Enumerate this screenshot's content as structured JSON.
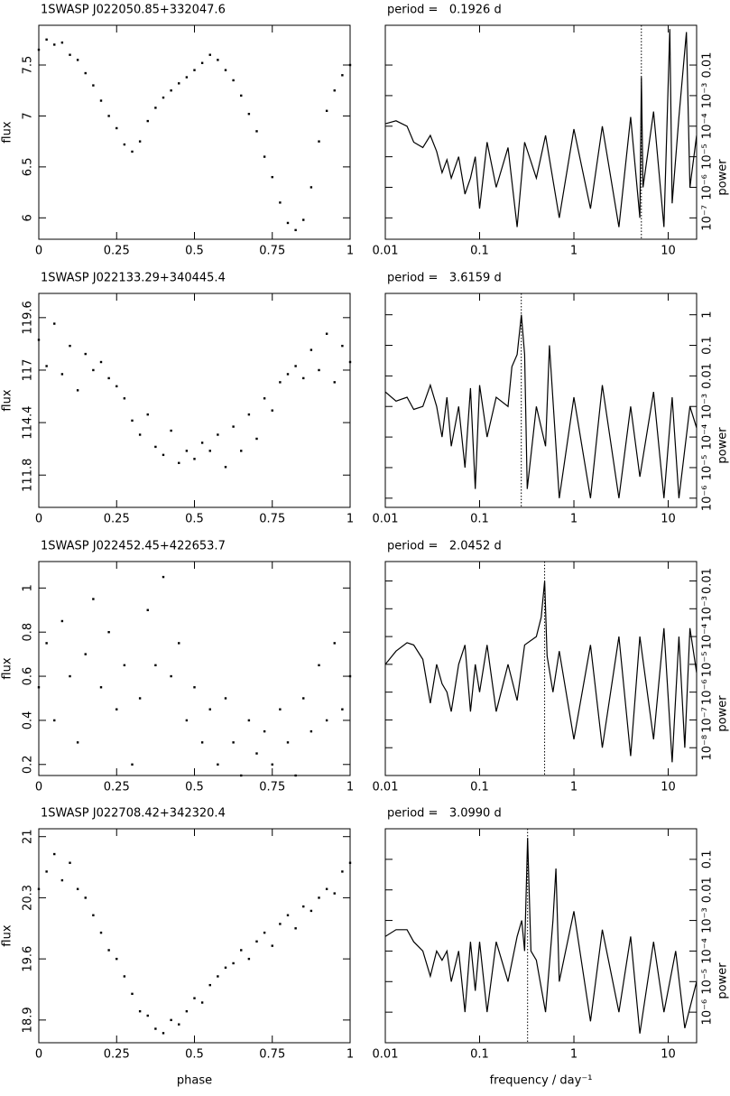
{
  "chart_data": [
    {
      "type": "scatter",
      "title": "1SWASP J022050.85+332047.6",
      "ylabel": "flux",
      "x": [
        0,
        0.025,
        0.05,
        0.075,
        0.1,
        0.125,
        0.15,
        0.175,
        0.2,
        0.225,
        0.25,
        0.275,
        0.3,
        0.325,
        0.35,
        0.375,
        0.4,
        0.425,
        0.45,
        0.475,
        0.5,
        0.525,
        0.55,
        0.575,
        0.6,
        0.625,
        0.65,
        0.675,
        0.7,
        0.725,
        0.75,
        0.775,
        0.8,
        0.825,
        0.85,
        0.875,
        0.9,
        0.925,
        0.95,
        0.975,
        1
      ],
      "values": [
        7.65,
        7.75,
        7.7,
        7.72,
        7.6,
        7.55,
        7.42,
        7.3,
        7.15,
        7.0,
        6.88,
        6.72,
        6.65,
        6.75,
        6.95,
        7.08,
        7.18,
        7.25,
        7.32,
        7.38,
        7.45,
        7.52,
        7.6,
        7.55,
        7.45,
        7.35,
        7.2,
        7.02,
        6.85,
        6.6,
        6.4,
        6.15,
        5.95,
        5.88,
        5.98,
        6.3,
        6.75,
        7.05,
        7.25,
        7.4,
        7.5
      ],
      "color": "#000000",
      "xlim": [
        0,
        1
      ],
      "xticks": [
        0,
        0.25,
        0.5,
        0.75,
        1
      ],
      "ylim": [
        5.79,
        7.89
      ],
      "yticks": [
        6,
        6.5,
        7,
        7.5
      ]
    },
    {
      "type": "line",
      "title": "period =   0.1926 d",
      "ylabel": "power",
      "xscale": "log",
      "yscale": "log",
      "vline": 5.19,
      "x": [
        0.01,
        0.013,
        0.017,
        0.02,
        0.025,
        0.03,
        0.035,
        0.04,
        0.045,
        0.05,
        0.06,
        0.07,
        0.08,
        0.09,
        0.1,
        0.12,
        0.15,
        0.2,
        0.25,
        0.3,
        0.4,
        0.5,
        0.7,
        1,
        1.5,
        2,
        3,
        4,
        5,
        5.19,
        5.4,
        7,
        9,
        10.4,
        11,
        13,
        15.6,
        17,
        20
      ],
      "values": [
        0.00012,
        0.00015,
        0.0001,
        3e-05,
        2e-05,
        5e-05,
        1.5e-05,
        3e-06,
        8e-06,
        2e-06,
        1e-05,
        6e-07,
        2e-06,
        1e-05,
        2e-07,
        3e-05,
        1e-06,
        2e-05,
        5e-08,
        3e-05,
        2e-06,
        5e-05,
        1e-07,
        8e-05,
        2e-07,
        0.0001,
        5e-08,
        0.0002,
        1e-07,
        0.004,
        1e-06,
        0.0003,
        5e-08,
        0.15,
        3e-07,
        0.0002,
        0.12,
        1e-06,
        5e-05
      ],
      "color": "#000000",
      "xlim": [
        0.01,
        20
      ],
      "xticks": [
        0.01,
        0.1,
        1,
        10
      ],
      "ylim": [
        2e-08,
        0.2
      ],
      "yticks": [
        {
          "value": 1e-07,
          "label": "10⁻⁷"
        },
        {
          "value": 1e-06,
          "label": "10⁻⁶"
        },
        {
          "value": 1e-05,
          "label": "10⁻⁵"
        },
        {
          "value": 0.0001,
          "label": "10⁻⁴"
        },
        {
          "value": 0.001,
          "label": "10⁻³"
        },
        0.01
      ]
    },
    {
      "type": "scatter",
      "title": "1SWASP J022133.29+340445.4",
      "ylabel": "flux",
      "x": [
        0,
        0.025,
        0.05,
        0.075,
        0.1,
        0.125,
        0.15,
        0.175,
        0.2,
        0.225,
        0.25,
        0.275,
        0.3,
        0.325,
        0.35,
        0.375,
        0.4,
        0.425,
        0.45,
        0.475,
        0.5,
        0.525,
        0.55,
        0.575,
        0.6,
        0.625,
        0.65,
        0.675,
        0.7,
        0.725,
        0.75,
        0.775,
        0.8,
        0.825,
        0.85,
        0.875,
        0.9,
        0.925,
        0.95,
        0.975,
        1
      ],
      "values": [
        118.5,
        117.2,
        119.3,
        116.8,
        118.2,
        116.0,
        117.8,
        117.0,
        117.4,
        116.6,
        116.2,
        115.6,
        114.5,
        113.8,
        114.8,
        113.2,
        112.8,
        114.0,
        112.4,
        113.0,
        112.6,
        113.4,
        113.0,
        113.8,
        112.2,
        114.2,
        113.0,
        114.8,
        113.6,
        115.6,
        115.0,
        116.4,
        116.8,
        117.2,
        116.6,
        118.0,
        117.0,
        118.8,
        116.4,
        118.2,
        117.4
      ],
      "color": "#000000",
      "xlim": [
        0,
        1
      ],
      "xticks": [
        0,
        0.25,
        0.5,
        0.75,
        1
      ],
      "ylim": [
        110.2,
        120.8
      ],
      "yticks": [
        111.8,
        114.4,
        117,
        119.6
      ]
    },
    {
      "type": "line",
      "title": "period =   3.6159 d",
      "ylabel": "power",
      "xscale": "log",
      "yscale": "log",
      "vline": 0.2766,
      "x": [
        0.01,
        0.013,
        0.017,
        0.02,
        0.025,
        0.03,
        0.035,
        0.04,
        0.045,
        0.05,
        0.06,
        0.07,
        0.08,
        0.09,
        0.1,
        0.12,
        0.15,
        0.2,
        0.22,
        0.25,
        0.277,
        0.3,
        0.32,
        0.4,
        0.5,
        0.55,
        0.7,
        1,
        1.5,
        2,
        3,
        4,
        5,
        7,
        9,
        11,
        13,
        17,
        20
      ],
      "values": [
        0.003,
        0.0015,
        0.002,
        0.0008,
        0.001,
        0.005,
        0.001,
        0.0001,
        0.002,
        5e-05,
        0.001,
        1e-05,
        0.004,
        2e-06,
        0.005,
        0.0001,
        0.002,
        0.001,
        0.02,
        0.05,
        1,
        0.05,
        2e-06,
        0.001,
        5e-05,
        0.1,
        1e-06,
        0.002,
        1e-06,
        0.005,
        1e-06,
        0.001,
        5e-06,
        0.003,
        1e-06,
        0.002,
        1e-06,
        0.001,
        0.0002
      ],
      "color": "#000000",
      "xlim": [
        0.01,
        20
      ],
      "xticks": [
        0.01,
        0.1,
        1,
        10
      ],
      "ylim": [
        5e-07,
        5
      ],
      "yticks": [
        {
          "value": 1e-06,
          "label": "10⁻⁶"
        },
        {
          "value": 1e-05,
          "label": "10⁻⁵"
        },
        {
          "value": 0.0001,
          "label": "10⁻⁴"
        },
        {
          "value": 0.001,
          "label": "10⁻³"
        },
        0.01,
        0.1,
        1
      ]
    },
    {
      "type": "scatter",
      "title": "1SWASP J022452.45+422653.7",
      "ylabel": "flux",
      "x": [
        0,
        0.025,
        0.05,
        0.075,
        0.1,
        0.125,
        0.15,
        0.175,
        0.2,
        0.225,
        0.25,
        0.275,
        0.3,
        0.325,
        0.35,
        0.375,
        0.4,
        0.425,
        0.45,
        0.475,
        0.5,
        0.525,
        0.55,
        0.575,
        0.6,
        0.625,
        0.65,
        0.675,
        0.7,
        0.725,
        0.75,
        0.775,
        0.8,
        0.825,
        0.85,
        0.875,
        0.9,
        0.925,
        0.95,
        0.975,
        1
      ],
      "values": [
        0.55,
        0.75,
        0.4,
        0.85,
        0.6,
        0.3,
        0.7,
        0.95,
        0.55,
        0.8,
        0.45,
        0.65,
        0.2,
        0.5,
        0.9,
        0.65,
        1.05,
        0.6,
        0.75,
        0.4,
        0.55,
        0.3,
        0.45,
        0.2,
        0.5,
        0.3,
        0.15,
        0.4,
        0.25,
        0.35,
        0.2,
        0.45,
        0.3,
        0.15,
        0.5,
        0.35,
        0.65,
        0.4,
        0.75,
        0.45,
        0.6
      ],
      "color": "#000000",
      "xlim": [
        0,
        1
      ],
      "xticks": [
        0,
        0.25,
        0.5,
        0.75,
        1
      ],
      "ylim": [
        0.15,
        1.12
      ],
      "yticks": [
        0.2,
        0.4,
        0.6,
        0.8,
        1
      ]
    },
    {
      "type": "line",
      "title": "period =   2.0452 d",
      "ylabel": "power",
      "xscale": "log",
      "yscale": "log",
      "vline": 0.489,
      "x": [
        0.01,
        0.013,
        0.017,
        0.02,
        0.025,
        0.03,
        0.035,
        0.04,
        0.045,
        0.05,
        0.06,
        0.07,
        0.08,
        0.09,
        0.1,
        0.12,
        0.15,
        0.2,
        0.25,
        0.3,
        0.4,
        0.45,
        0.489,
        0.52,
        0.6,
        0.7,
        1,
        1.5,
        2,
        3,
        4,
        5,
        7,
        9,
        11,
        13,
        15,
        17,
        20
      ],
      "values": [
        1e-05,
        3e-05,
        6e-05,
        5e-05,
        1.5e-05,
        4e-07,
        1e-05,
        2e-06,
        1e-06,
        2e-07,
        1e-05,
        5e-05,
        2e-07,
        1e-05,
        1e-06,
        5e-05,
        2e-07,
        1e-05,
        5e-07,
        5e-05,
        0.0001,
        0.0005,
        0.01,
        2e-05,
        1e-06,
        3e-05,
        2e-08,
        5e-05,
        1e-08,
        0.0001,
        5e-09,
        0.0001,
        2e-08,
        0.0002,
        3e-09,
        0.0001,
        1e-08,
        0.0002,
        5e-06
      ],
      "color": "#000000",
      "xlim": [
        0.01,
        20
      ],
      "xticks": [
        0.01,
        0.1,
        1,
        10
      ],
      "ylim": [
        1e-09,
        0.05
      ],
      "yticks": [
        {
          "value": 1e-08,
          "label": "10⁻⁸"
        },
        {
          "value": 1e-07,
          "label": "10⁻⁷"
        },
        {
          "value": 1e-06,
          "label": "10⁻⁶"
        },
        {
          "value": 1e-05,
          "label": "10⁻⁵"
        },
        {
          "value": 0.0001,
          "label": "10⁻⁴"
        },
        {
          "value": 0.001,
          "label": "10⁻³"
        },
        0.01
      ]
    },
    {
      "type": "scatter",
      "title": "1SWASP J022708.42+342320.4",
      "ylabel": "flux",
      "xlabel": "phase",
      "x": [
        0,
        0.025,
        0.05,
        0.075,
        0.1,
        0.125,
        0.15,
        0.175,
        0.2,
        0.225,
        0.25,
        0.275,
        0.3,
        0.325,
        0.35,
        0.375,
        0.4,
        0.425,
        0.45,
        0.475,
        0.5,
        0.525,
        0.55,
        0.575,
        0.6,
        0.625,
        0.65,
        0.675,
        0.7,
        0.725,
        0.75,
        0.775,
        0.8,
        0.825,
        0.85,
        0.875,
        0.9,
        0.925,
        0.95,
        0.975,
        1
      ],
      "values": [
        20.4,
        20.6,
        20.8,
        20.5,
        20.7,
        20.4,
        20.3,
        20.1,
        19.9,
        19.7,
        19.6,
        19.4,
        19.2,
        19.0,
        18.95,
        18.8,
        18.75,
        18.9,
        18.85,
        19.0,
        19.15,
        19.1,
        19.3,
        19.4,
        19.5,
        19.55,
        19.7,
        19.6,
        19.8,
        19.9,
        19.75,
        20.0,
        20.1,
        19.95,
        20.2,
        20.15,
        20.3,
        20.4,
        20.35,
        20.6,
        20.7
      ],
      "color": "#000000",
      "xlim": [
        0,
        1
      ],
      "xticks": [
        0,
        0.25,
        0.5,
        0.75,
        1
      ],
      "ylim": [
        18.64,
        21.09
      ],
      "yticks": [
        18.9,
        19.6,
        20.3,
        21
      ]
    },
    {
      "type": "line",
      "title": "period =   3.0990 d",
      "ylabel": "power",
      "xlabel": "frequency / day⁻¹",
      "xscale": "log",
      "yscale": "log",
      "vline": 0.3227,
      "x": [
        0.01,
        0.013,
        0.017,
        0.02,
        0.025,
        0.03,
        0.035,
        0.04,
        0.045,
        0.05,
        0.06,
        0.07,
        0.08,
        0.09,
        0.1,
        0.12,
        0.15,
        0.2,
        0.25,
        0.28,
        0.3,
        0.323,
        0.35,
        0.4,
        0.5,
        0.6,
        0.645,
        0.7,
        1,
        1.5,
        2,
        3,
        4,
        5,
        7,
        9,
        12,
        15,
        20
      ],
      "values": [
        0.0003,
        0.0005,
        0.0005,
        0.0002,
        0.0001,
        1.5e-05,
        0.0001,
        5e-05,
        0.0001,
        1e-05,
        0.0001,
        1e-06,
        0.0002,
        5e-06,
        0.0002,
        1e-06,
        0.0002,
        1e-05,
        0.0003,
        0.001,
        0.0001,
        0.5,
        0.0001,
        5e-05,
        1e-06,
        0.001,
        0.05,
        1e-05,
        0.002,
        5e-07,
        0.0005,
        1e-06,
        0.0003,
        2e-07,
        0.0002,
        1e-06,
        0.0001,
        3e-07,
        1e-05
      ],
      "color": "#000000",
      "xlim": [
        0.01,
        20
      ],
      "xticks": [
        0.01,
        0.1,
        1,
        10
      ],
      "ylim": [
        1e-07,
        1
      ],
      "yticks": [
        {
          "value": 1e-06,
          "label": "10⁻⁶"
        },
        {
          "value": 1e-05,
          "label": "10⁻⁵"
        },
        {
          "value": 0.0001,
          "label": "10⁻⁴"
        },
        {
          "value": 0.001,
          "label": "10⁻³"
        },
        0.01,
        0.1
      ]
    }
  ]
}
